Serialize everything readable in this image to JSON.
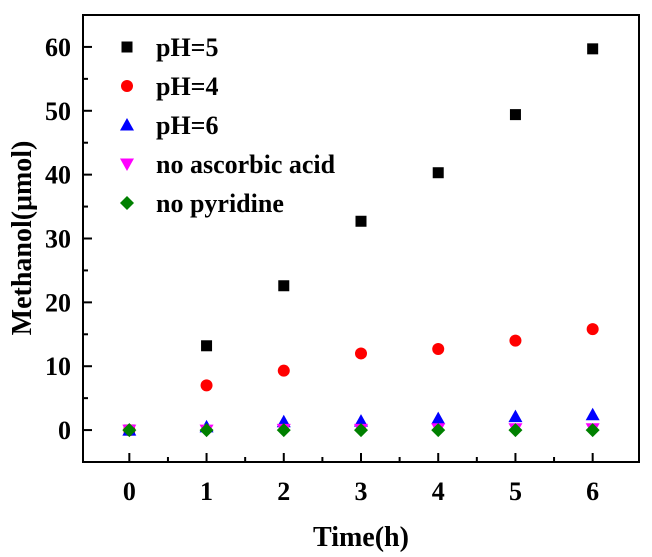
{
  "chart_data": {
    "type": "scatter",
    "xlabel": "Time(h)",
    "ylabel": "Methanol(μmol)",
    "xlim": [
      -0.6,
      6.6
    ],
    "ylim": [
      -5,
      65
    ],
    "x_ticks": [
      0,
      1,
      2,
      3,
      4,
      5,
      6
    ],
    "y_ticks": [
      0,
      10,
      20,
      30,
      40,
      50,
      60
    ],
    "legend_position": "top-left",
    "grid": false,
    "series": [
      {
        "name": "pH=5",
        "marker": "square",
        "color": "#000000",
        "x": [
          0,
          1,
          2,
          3,
          4,
          5,
          6
        ],
        "y": [
          0,
          13.2,
          22.6,
          32.7,
          40.3,
          49.4,
          59.7
        ]
      },
      {
        "name": "pH=4",
        "marker": "circle",
        "color": "#ff0000",
        "x": [
          0,
          1,
          2,
          3,
          4,
          5,
          6
        ],
        "y": [
          0,
          7.0,
          9.3,
          12.0,
          12.7,
          14.0,
          15.8
        ]
      },
      {
        "name": "pH=6",
        "marker": "triangle-up",
        "color": "#0000ff",
        "x": [
          0,
          1,
          2,
          3,
          4,
          5,
          6
        ],
        "y": [
          0,
          0.5,
          1.3,
          1.4,
          1.8,
          2.1,
          2.4
        ]
      },
      {
        "name": "no ascorbic acid",
        "marker": "triangle-down",
        "color": "#ff00ff",
        "x": [
          0,
          1,
          2,
          3,
          4,
          5,
          6
        ],
        "y": [
          0,
          0,
          0.1,
          0.1,
          0.2,
          0.2,
          0.2
        ]
      },
      {
        "name": "no pyridine",
        "marker": "diamond",
        "color": "#008000",
        "x": [
          0,
          1,
          2,
          3,
          4,
          5,
          6
        ],
        "y": [
          0,
          0,
          0,
          0,
          0,
          0,
          0
        ]
      }
    ]
  }
}
